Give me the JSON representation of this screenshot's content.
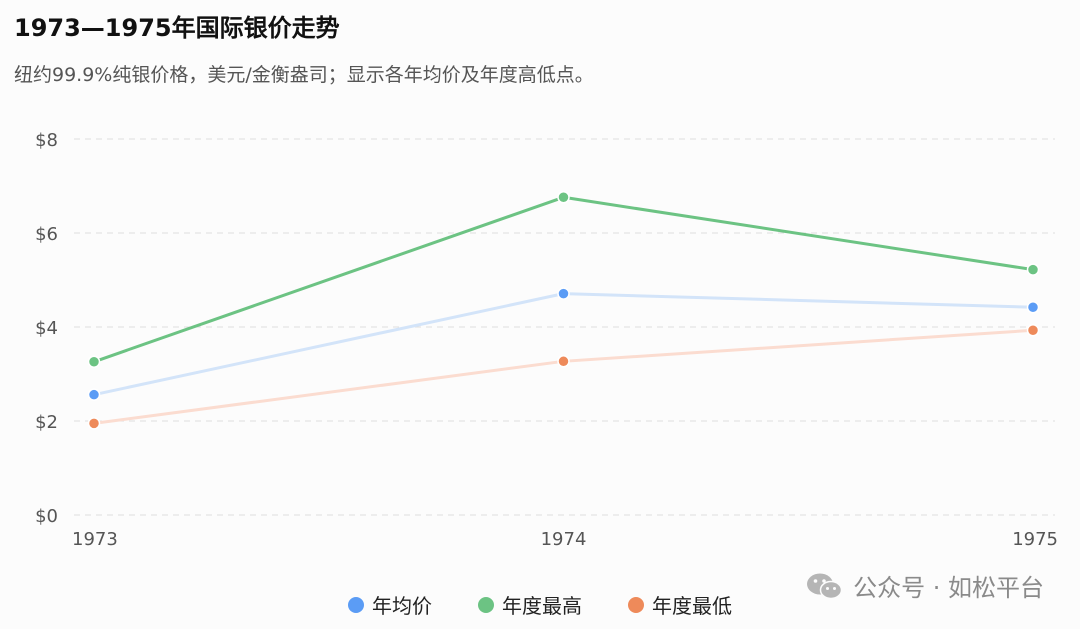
{
  "header": {
    "title": "1973—1975年国际银价走势",
    "subtitle": "纽约99.9%纯银价格，美元/金衡盎司；显示各年均价及年度高低点。"
  },
  "chart_data": {
    "type": "line",
    "x": [
      "1973",
      "1974",
      "1975"
    ],
    "y_ticks": [
      "$0",
      "$2",
      "$4",
      "$6",
      "$8"
    ],
    "ylim": [
      0,
      8
    ],
    "grid": true,
    "legend_position": "bottom",
    "series": [
      {
        "name": "年均价",
        "values": [
          2.56,
          4.71,
          4.42
        ],
        "color": "#5b9cf5",
        "line_color": "#d3e4f9"
      },
      {
        "name": "年度最高",
        "values": [
          3.26,
          6.76,
          5.22
        ],
        "color": "#6cc383",
        "line_color": "#6cc383"
      },
      {
        "name": "年度最低",
        "values": [
          1.95,
          3.27,
          3.93
        ],
        "color": "#ee8a5a",
        "line_color": "#fbdcd0"
      }
    ]
  },
  "watermark": {
    "text": "公众号 · 如松平台",
    "icon": "wechat-icon"
  }
}
